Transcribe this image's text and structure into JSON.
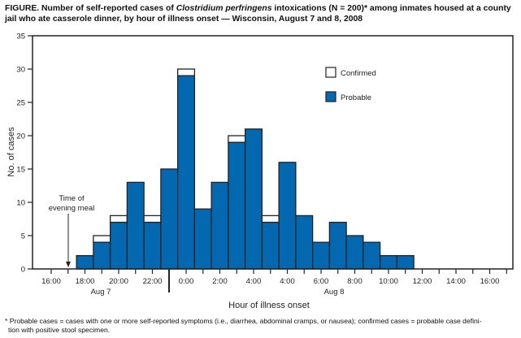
{
  "chart_data": {
    "type": "bar",
    "stacked": true,
    "title_prefix": "FIGURE. Number of self-reported cases of ",
    "title_italic": "Clostridium perfringens",
    "title_suffix": " intoxications (N = 200)* among inmates housed at a county jail who ate casserole dinner, by hour of illness onset — Wisconsin, August 7 and 8, 2008",
    "xlabel": "Hour of illness onset",
    "ylabel": "No. of cases",
    "ylim": [
      0,
      35
    ],
    "yticks": [
      0,
      5,
      10,
      15,
      20,
      25,
      30,
      35
    ],
    "xtick_labels": [
      "16:00",
      "18:00",
      "20:00",
      "22:00",
      "0:00",
      "2:00",
      "4:00",
      "4:00",
      "6:00",
      "8:00",
      "10:00",
      "12:00",
      "14:00",
      "16:00"
    ],
    "date_labels": [
      "Aug 7",
      "Aug 8"
    ],
    "first_bar_hour": "18:00",
    "categories": [
      "18:00",
      "19:00",
      "20:00",
      "21:00",
      "22:00",
      "23:00",
      "0:00",
      "1:00",
      "2:00",
      "3:00",
      "4:00",
      "5:00",
      "6:00",
      "7:00",
      "8:00",
      "9:00",
      "10:00",
      "11:00",
      "12:00",
      "13:00"
    ],
    "series": [
      {
        "name": "Probable",
        "color": "#0468b1",
        "values": [
          2,
          4,
          7,
          13,
          7,
          15,
          29,
          9,
          13,
          19,
          21,
          7,
          16,
          8,
          4,
          7,
          5,
          4,
          2,
          2
        ]
      },
      {
        "name": "Confirmed",
        "color": "#ffffff",
        "values": [
          0,
          1,
          1,
          0,
          1,
          0,
          1,
          0,
          0,
          1,
          0,
          1,
          0,
          0,
          0,
          0,
          0,
          0,
          0,
          0
        ]
      }
    ],
    "legend": {
      "placement": "top-right",
      "entries": [
        "Confirmed",
        "Probable"
      ]
    },
    "annotation": {
      "lines": [
        "Time of",
        "evening meal"
      ],
      "hour": "17:00"
    },
    "grid": false
  },
  "footnote_line1": "* Probable cases = cases with one or more self-reported symptoms (i.e., diarrhea, abdominal cramps, or nausea); confirmed cases = probable case defini-",
  "footnote_line2": "tion with positive stool specimen."
}
